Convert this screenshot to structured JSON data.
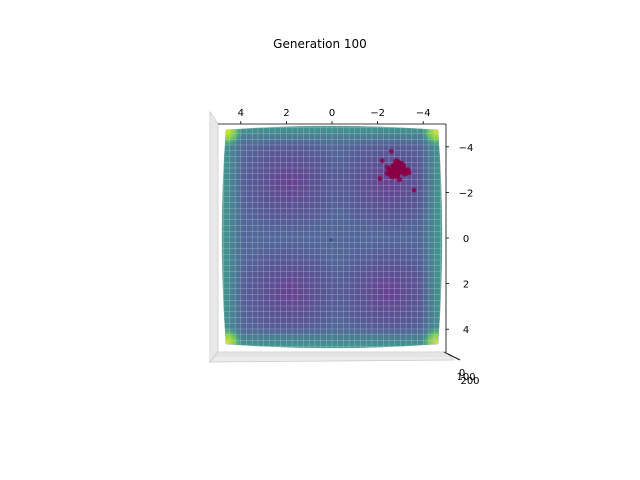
{
  "chart_data": {
    "type": "surface-scatter-3d",
    "title": "Generation 100",
    "view": "top-down",
    "x_ticks": [
      "4",
      "2",
      "0",
      "−2",
      "−4"
    ],
    "y_ticks": [
      "−4",
      "−2",
      "0",
      "2",
      "4"
    ],
    "z_ticks": [
      "0",
      "100",
      "200"
    ],
    "xlim": [
      -5,
      5
    ],
    "ylim": [
      -5,
      5
    ],
    "colormap": "viridis",
    "surface": {
      "description_basins": [
        [
          -3,
          -3
        ],
        [
          3,
          -3
        ],
        [
          -3,
          3
        ],
        [
          3,
          3
        ]
      ],
      "shape": "four-basin objective surface with steep corners"
    },
    "population": {
      "color": "#8a0046",
      "center": [
        -2.9,
        -3.0
      ],
      "spread": 0.45,
      "count": 60
    }
  },
  "colors": {
    "low": "#5b3f8c",
    "mid": "#3e7f98",
    "high": "#35b778",
    "peak": "#d9e12a",
    "grid": "#bfc8d8",
    "point": "#8a0046"
  }
}
